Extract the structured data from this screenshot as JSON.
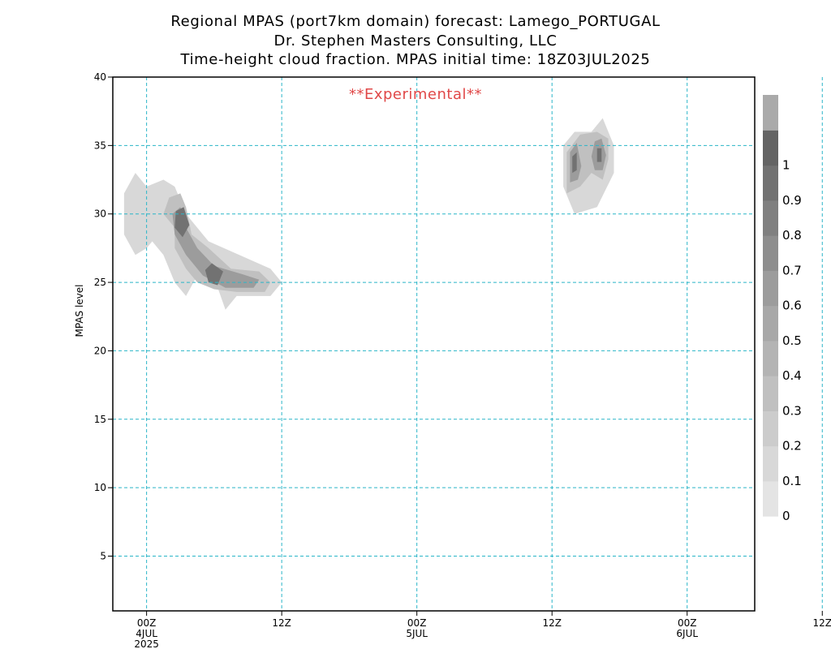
{
  "titles": [
    "Regional MPAS (port7km domain) forecast: Lamego_PORTUGAL",
    "Dr. Stephen Masters Consulting, LLC",
    "Time-height cloud fraction.   MPAS initial time: 18Z03JUL2025"
  ],
  "watermark": "**Experimental**",
  "chart_data": {
    "type": "heatmap",
    "ylabel": "MPAS level",
    "xlim": [
      -3,
      54
    ],
    "ylim": [
      1,
      40
    ],
    "y_ticks": [
      5,
      10,
      15,
      20,
      25,
      30,
      35,
      40
    ],
    "x_ticks": [
      {
        "h": 0,
        "lines": [
          "00Z",
          "4JUL",
          "2025"
        ]
      },
      {
        "h": 12,
        "lines": [
          "12Z"
        ]
      },
      {
        "h": 24,
        "lines": [
          "00Z",
          "5JUL"
        ]
      },
      {
        "h": 36,
        "lines": [
          "12Z"
        ]
      },
      {
        "h": 48,
        "lines": [
          "00Z",
          "6JUL"
        ]
      },
      {
        "h": 60,
        "lines": [
          "12Z"
        ]
      }
    ],
    "grid": true,
    "grid_color": "#2ab5c8",
    "colorbar": {
      "labels": [
        "0",
        "0.1",
        "0.2",
        "0.3",
        "0.4",
        "0.5",
        "0.6",
        "0.7",
        "0.8",
        "0.9",
        "1"
      ],
      "colors": [
        "#e4e4e4",
        "#d8d8d8",
        "#cccccc",
        "#c0c0c0",
        "#b4b4b4",
        "#a8a8a8",
        "#9c9c9c",
        "#8e8e8e",
        "#808080",
        "#727272",
        "#646464",
        "#aaaaaa"
      ]
    },
    "cloud_contours": [
      {
        "level": 0.1,
        "points": [
          [
            -2,
            28.5
          ],
          [
            -1,
            27
          ],
          [
            0,
            27.5
          ],
          [
            0.5,
            28
          ],
          [
            1.5,
            27
          ],
          [
            2.5,
            25
          ],
          [
            3.5,
            24
          ],
          [
            4.5,
            25.5
          ],
          [
            5.5,
            26.5
          ],
          [
            7,
            23
          ],
          [
            8,
            24
          ],
          [
            11,
            24
          ],
          [
            12,
            25
          ],
          [
            11,
            26
          ],
          [
            5.5,
            28
          ],
          [
            3.5,
            30
          ],
          [
            2.5,
            32
          ],
          [
            1.5,
            32.5
          ],
          [
            0,
            32
          ],
          [
            -1,
            33
          ],
          [
            -2,
            31.5
          ]
        ]
      },
      {
        "level": 0.3,
        "points": [
          [
            2.5,
            29
          ],
          [
            2.5,
            27.5
          ],
          [
            3.5,
            26
          ],
          [
            4.5,
            25
          ],
          [
            6,
            24.5
          ],
          [
            8,
            24.3
          ],
          [
            10.5,
            24.3
          ],
          [
            11,
            25
          ],
          [
            10,
            25.8
          ],
          [
            7.5,
            26
          ],
          [
            5.5,
            27.5
          ],
          [
            4,
            28.5
          ],
          [
            3.5,
            30.5
          ],
          [
            3,
            31.5
          ],
          [
            2,
            31.2
          ],
          [
            1.5,
            30
          ]
        ]
      },
      {
        "level": 0.6,
        "points": [
          [
            2.5,
            28.5
          ],
          [
            3.5,
            27
          ],
          [
            5,
            25.5
          ],
          [
            7,
            24.6
          ],
          [
            9.5,
            24.6
          ],
          [
            10,
            25.2
          ],
          [
            8.5,
            25.6
          ],
          [
            6,
            26.2
          ],
          [
            4.5,
            27.5
          ],
          [
            3.5,
            29
          ],
          [
            3,
            30.5
          ],
          [
            2.3,
            30
          ]
        ]
      },
      {
        "level": 0.9,
        "points": [
          [
            2.5,
            29
          ],
          [
            3.2,
            28.3
          ],
          [
            3.8,
            29.2
          ],
          [
            3.3,
            30.5
          ],
          [
            2.6,
            30.2
          ]
        ]
      },
      {
        "level": 0.9,
        "points": [
          [
            5.5,
            25
          ],
          [
            6.3,
            24.8
          ],
          [
            6.8,
            25.8
          ],
          [
            5.8,
            26.4
          ],
          [
            5.2,
            25.9
          ]
        ]
      },
      {
        "level": 0.1,
        "points": [
          [
            37,
            32
          ],
          [
            38,
            30
          ],
          [
            40,
            30.5
          ],
          [
            41.5,
            33
          ],
          [
            41.5,
            35
          ],
          [
            40.5,
            37
          ],
          [
            39.5,
            36
          ],
          [
            38,
            36
          ],
          [
            37,
            35
          ]
        ]
      },
      {
        "level": 0.3,
        "points": [
          [
            37.3,
            31.5
          ],
          [
            38.5,
            32
          ],
          [
            39.5,
            33
          ],
          [
            40.5,
            32.5
          ],
          [
            41,
            34
          ],
          [
            41,
            35.5
          ],
          [
            40,
            36
          ],
          [
            38.5,
            35.8
          ],
          [
            37.3,
            34.5
          ]
        ]
      },
      {
        "level": 0.6,
        "points": [
          [
            37.6,
            32.3
          ],
          [
            38.3,
            32.5
          ],
          [
            38.6,
            33.5
          ],
          [
            38.2,
            35.2
          ],
          [
            37.6,
            34.5
          ]
        ]
      },
      {
        "level": 0.6,
        "points": [
          [
            39.8,
            33.2
          ],
          [
            40.5,
            33.2
          ],
          [
            40.8,
            34.3
          ],
          [
            40.4,
            35.5
          ],
          [
            39.8,
            35.3
          ],
          [
            39.5,
            34.2
          ]
        ]
      },
      {
        "level": 0.9,
        "points": [
          [
            37.8,
            33
          ],
          [
            38.2,
            33.2
          ],
          [
            38.2,
            34.5
          ],
          [
            37.8,
            34.2
          ]
        ]
      },
      {
        "level": 0.9,
        "points": [
          [
            40,
            33.8
          ],
          [
            40.4,
            33.8
          ],
          [
            40.4,
            34.8
          ],
          [
            40,
            34.8
          ]
        ]
      }
    ]
  }
}
